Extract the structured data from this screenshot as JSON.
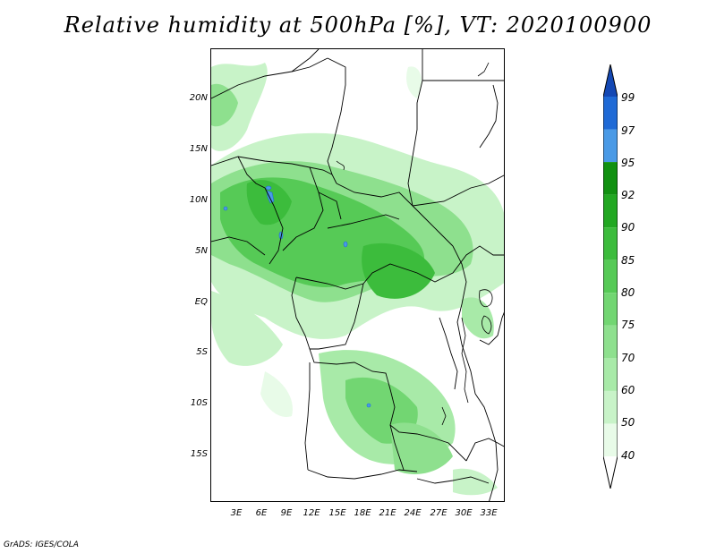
{
  "title": "Relative humidity at 500hPa [%], VT: 2020100900",
  "credit": "GrADS: IGES/COLA",
  "lat_ticks": [
    "20N",
    "15N",
    "10N",
    "5N",
    "EQ",
    "5S",
    "10S",
    "15S"
  ],
  "lon_ticks": [
    "3E",
    "6E",
    "9E",
    "12E",
    "15E",
    "18E",
    "21E",
    "24E",
    "27E",
    "30E",
    "33E"
  ],
  "colorbar": {
    "levels": [
      "40",
      "50",
      "60",
      "70",
      "75",
      "80",
      "85",
      "90",
      "92",
      "95",
      "97",
      "99"
    ],
    "colors": [
      "#ffffff",
      "#e8fbe8",
      "#c8f3c8",
      "#a8eaa8",
      "#8ee08e",
      "#72d672",
      "#56ca56",
      "#3cbc3c",
      "#22a822",
      "#119111",
      "#4a9ae6",
      "#1f6ad6",
      "#1448b4"
    ]
  },
  "legend_colors": {
    "humid": "#3cbc3c",
    "saturated": "#4a9ae6",
    "border": "#000000"
  }
}
